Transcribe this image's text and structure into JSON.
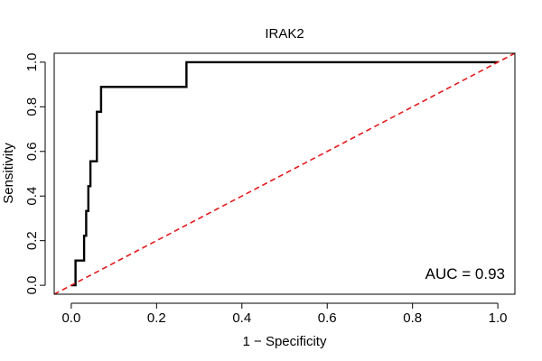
{
  "chart_data": {
    "type": "line",
    "title": "IRAK2",
    "xlabel": "1 − Specificity",
    "ylabel": "Sensitivity",
    "xlim": [
      -0.04,
      1.04
    ],
    "ylim": [
      -0.04,
      1.04
    ],
    "xticks": [
      0.0,
      0.2,
      0.4,
      0.6,
      0.8,
      1.0
    ],
    "yticks": [
      0.0,
      0.2,
      0.4,
      0.6,
      0.8,
      1.0
    ],
    "xtick_labels": [
      "0.0",
      "0.2",
      "0.4",
      "0.6",
      "0.8",
      "1.0"
    ],
    "ytick_labels": [
      "0.0",
      "0.2",
      "0.4",
      "0.6",
      "0.8",
      "1.0"
    ],
    "grid": false,
    "annotation": "AUC = 0.93",
    "series": [
      {
        "color": "#000000",
        "style": "solid",
        "x": [
          0.0,
          0.0,
          0.01,
          0.01,
          0.02,
          0.02,
          0.02,
          0.03,
          0.03,
          0.035,
          0.035,
          0.04,
          0.04,
          0.045,
          0.045,
          0.05,
          0.05,
          0.06,
          0.06,
          0.065,
          0.065,
          0.07,
          0.07,
          0.27,
          0.27,
          1.0
        ],
        "y": [
          0.0,
          0.0,
          0.0,
          0.111,
          0.111,
          0.111,
          0.111,
          0.111,
          0.222,
          0.222,
          0.333,
          0.333,
          0.444,
          0.444,
          0.556,
          0.556,
          0.556,
          0.556,
          0.778,
          0.778,
          0.778,
          0.778,
          0.889,
          0.889,
          1.0,
          1.0
        ]
      },
      {
        "color": "#e31a1c",
        "style": "dashed",
        "x": [
          -0.04,
          1.04
        ],
        "y": [
          -0.04,
          1.04
        ]
      }
    ]
  }
}
